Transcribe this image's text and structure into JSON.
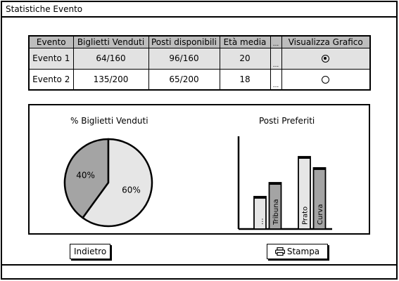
{
  "window": {
    "title": "Statistiche Evento"
  },
  "table": {
    "columns": [
      "Evento",
      "Biglietti Venduti",
      "Posti disponibili",
      "Età media",
      "...",
      "Visualizza Grafico"
    ],
    "rows": [
      {
        "evento": "Evento 1",
        "venduti": "64/160",
        "disponibili": "96/160",
        "eta": "20",
        "more": "...",
        "selected": true
      },
      {
        "evento": "Evento 2",
        "venduti": "135/200",
        "disponibili": "65/200",
        "eta": "18",
        "more": "...",
        "selected": false
      }
    ]
  },
  "chart_data": [
    {
      "type": "pie",
      "title": "% Biglietti Venduti",
      "labels": [
        "40%",
        "60%"
      ],
      "values": [
        40,
        60
      ],
      "colors": [
        "#a4a4a4",
        "#e6e6e6"
      ]
    },
    {
      "type": "bar",
      "title": "Posti Preferiti",
      "categories": [
        "...",
        "Tribuna",
        "Prato",
        "Curva"
      ],
      "values": [
        0.35,
        0.5,
        0.78,
        0.66
      ],
      "colors": [
        "#e6e6e6",
        "#a4a4a4",
        "#e6e6e6",
        "#a4a4a4"
      ]
    }
  ],
  "buttons": {
    "back_label": "Indietro",
    "print_label": "Stampa",
    "print_icon": "printer-icon"
  }
}
